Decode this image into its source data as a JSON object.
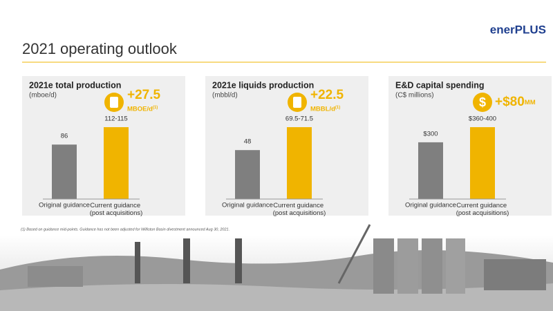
{
  "header": {
    "title": "2021 operating outlook",
    "logo": "enerPLUS"
  },
  "chart_data": [
    {
      "type": "bar",
      "title": "2021e total production",
      "unit": "(mboe/d)",
      "categories": [
        "Original guidance",
        "Current guidance (post acquisitions)"
      ],
      "values": [
        86,
        113.5
      ],
      "value_labels": [
        "86",
        "112-115"
      ],
      "colors": [
        "#7f7f7f",
        "#f0b400"
      ],
      "callout": {
        "value": "+27.5",
        "unit": "MBOE/d",
        "note": "(1)"
      }
    },
    {
      "type": "bar",
      "title": "2021e liquids production",
      "unit": "(mbbl/d)",
      "categories": [
        "Original guidance",
        "Current guidance (post acquisitions)"
      ],
      "values": [
        48,
        70.5
      ],
      "value_labels": [
        "48",
        "69.5-71.5"
      ],
      "colors": [
        "#7f7f7f",
        "#f0b400"
      ],
      "callout": {
        "value": "+22.5",
        "unit": "MBBL/d",
        "note": "(1)"
      }
    },
    {
      "type": "bar",
      "title": "E&D capital spending",
      "unit": "(C$ millions)",
      "categories": [
        "Original guidance",
        "Current guidance (post acquisitions)"
      ],
      "values": [
        300,
        380
      ],
      "value_labels": [
        "$300",
        "$360-400"
      ],
      "colors": [
        "#7f7f7f",
        "#f0b400"
      ],
      "callout": {
        "value": "+$80",
        "unit": "MM",
        "icon": "$"
      }
    }
  ],
  "footnote": "(1) Based on guidance mid-points. Guidance has not been adjusted for Williston Basin divestment announced Aug 30, 2021."
}
